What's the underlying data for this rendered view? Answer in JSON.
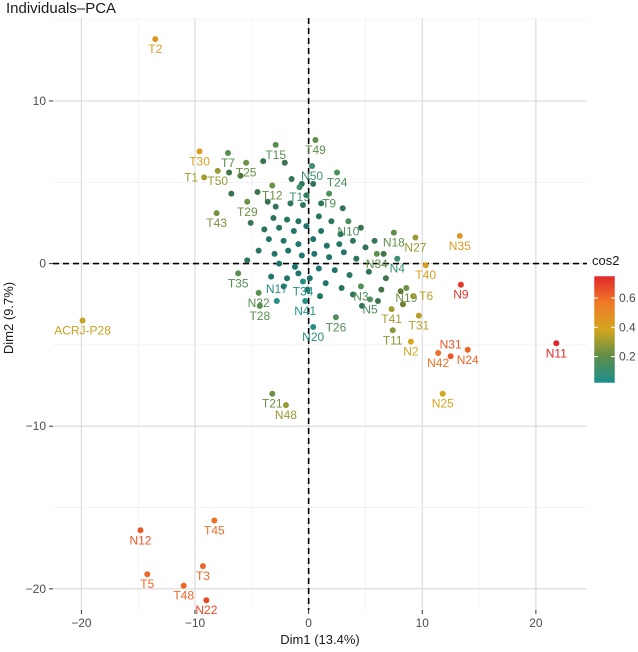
{
  "chart_data": {
    "type": "scatter",
    "title": "Individuals–PCA",
    "xlabel": "Dim1 (13.4%)",
    "ylabel": "Dim2 (9.7%)",
    "xlim": [
      -22.5,
      24.5
    ],
    "ylim": [
      -21.3,
      15.1
    ],
    "xticks": [
      -20,
      -10,
      0,
      10,
      20
    ],
    "yticks": [
      -20,
      -10,
      0,
      10
    ],
    "grid": true,
    "reference_lines": {
      "x": 0,
      "y": 0,
      "style": "dashed"
    },
    "color_by": "cos2",
    "legend": {
      "title": "cos2",
      "ticks": [
        0.2,
        0.4,
        0.6
      ],
      "range": [
        0.02,
        0.75
      ],
      "placement": "right"
    },
    "labeled_points": [
      {
        "label": "T2",
        "x": -13.5,
        "y": 13.8,
        "cos2": 0.45
      },
      {
        "label": "T30",
        "x": -9.6,
        "y": 6.9,
        "cos2": 0.42
      },
      {
        "label": "T7",
        "x": -7.1,
        "y": 6.8,
        "cos2": 0.18
      },
      {
        "label": "T15",
        "x": -2.9,
        "y": 7.3,
        "cos2": 0.18
      },
      {
        "label": "T49",
        "x": 0.6,
        "y": 7.6,
        "cos2": 0.2
      },
      {
        "label": "T50",
        "x": -8.0,
        "y": 5.7,
        "cos2": 0.3
      },
      {
        "label": "T25",
        "x": -5.5,
        "y": 6.2,
        "cos2": 0.22
      },
      {
        "label": "N50",
        "x": 0.3,
        "y": 6.0,
        "cos2": 0.12
      },
      {
        "label": "T24",
        "x": 2.5,
        "y": 5.6,
        "cos2": 0.15
      },
      {
        "label": "T12",
        "x": -3.2,
        "y": 4.8,
        "cos2": 0.22
      },
      {
        "label": "T19",
        "x": -0.8,
        "y": 4.7,
        "cos2": 0.12
      },
      {
        "label": "T1",
        "x": -9.2,
        "y": 5.3,
        "cos2": 0.32
      },
      {
        "label": "T9",
        "x": 1.8,
        "y": 4.3,
        "cos2": 0.16
      },
      {
        "label": "T29",
        "x": -5.4,
        "y": 3.8,
        "cos2": 0.22
      },
      {
        "label": "T43",
        "x": -8.1,
        "y": 3.1,
        "cos2": 0.24
      },
      {
        "label": "N10",
        "x": 3.5,
        "y": 2.6,
        "cos2": 0.15
      },
      {
        "label": "N18",
        "x": 7.5,
        "y": 1.9,
        "cos2": 0.2
      },
      {
        "label": "N27",
        "x": 9.4,
        "y": 1.6,
        "cos2": 0.3
      },
      {
        "label": "N35",
        "x": 13.3,
        "y": 1.7,
        "cos2": 0.45
      },
      {
        "label": "N34",
        "x": 6.0,
        "y": 0.6,
        "cos2": 0.2
      },
      {
        "label": "N4",
        "x": 7.8,
        "y": 0.3,
        "cos2": 0.1
      },
      {
        "label": "T40",
        "x": 10.3,
        "y": -0.1,
        "cos2": 0.42
      },
      {
        "label": "T35",
        "x": -6.2,
        "y": -0.6,
        "cos2": 0.18
      },
      {
        "label": "T34",
        "x": -0.5,
        "y": -1.1,
        "cos2": 0.05
      },
      {
        "label": "N3",
        "x": 4.6,
        "y": -1.4,
        "cos2": 0.16
      },
      {
        "label": "N19",
        "x": 8.6,
        "y": -1.5,
        "cos2": 0.22
      },
      {
        "label": "N9",
        "x": 13.4,
        "y": -1.3,
        "cos2": 0.72
      },
      {
        "label": "N32",
        "x": -4.4,
        "y": -1.8,
        "cos2": 0.18
      },
      {
        "label": "N5",
        "x": 5.4,
        "y": -2.2,
        "cos2": 0.15
      },
      {
        "label": "N41",
        "x": -0.3,
        "y": -2.3,
        "cos2": 0.05
      },
      {
        "label": "T6",
        "x": 9.2,
        "y": -2.0,
        "cos2": 0.35
      },
      {
        "label": "T41",
        "x": 7.3,
        "y": -2.8,
        "cos2": 0.32
      },
      {
        "label": "N17",
        "x": -2.8,
        "y": -2.3,
        "cos2": 0.05
      },
      {
        "label": "T28",
        "x": -4.3,
        "y": -2.6,
        "cos2": 0.18
      },
      {
        "label": "T26",
        "x": 2.4,
        "y": -3.3,
        "cos2": 0.16
      },
      {
        "label": "T31",
        "x": 9.7,
        "y": -3.2,
        "cos2": 0.35
      },
      {
        "label": "ACRJ-P28",
        "x": -19.9,
        "y": -3.5,
        "cos2": 0.38
      },
      {
        "label": "N20",
        "x": 0.4,
        "y": -3.9,
        "cos2": 0.05
      },
      {
        "label": "T11",
        "x": 7.4,
        "y": -4.1,
        "cos2": 0.28
      },
      {
        "label": "N42",
        "x": 11.4,
        "y": -5.5,
        "cos2": 0.6
      },
      {
        "label": "N24",
        "x": 14.0,
        "y": -5.3,
        "cos2": 0.62
      },
      {
        "label": "N2",
        "x": 9.0,
        "y": -4.8,
        "cos2": 0.4
      },
      {
        "label": "N31",
        "x": 12.5,
        "y": -5.7,
        "cos2": 0.65
      },
      {
        "label": "N11",
        "x": 21.8,
        "y": -4.9,
        "cos2": 0.75
      },
      {
        "label": "N25",
        "x": 11.8,
        "y": -8.0,
        "cos2": 0.4
      },
      {
        "label": "T21",
        "x": -3.2,
        "y": -8.0,
        "cos2": 0.22
      },
      {
        "label": "N48",
        "x": -2.0,
        "y": -8.7,
        "cos2": 0.3
      },
      {
        "label": "T45",
        "x": -8.3,
        "y": -15.8,
        "cos2": 0.6
      },
      {
        "label": "N12",
        "x": -14.8,
        "y": -16.4,
        "cos2": 0.65
      },
      {
        "label": "T3",
        "x": -9.3,
        "y": -18.6,
        "cos2": 0.62
      },
      {
        "label": "T5",
        "x": -14.2,
        "y": -19.1,
        "cos2": 0.62
      },
      {
        "label": "T48",
        "x": -11.0,
        "y": -19.8,
        "cos2": 0.62
      },
      {
        "label": "N22",
        "x": -9.0,
        "y": -20.7,
        "cos2": 0.68
      }
    ],
    "other_points": [
      [
        -7.0,
        5.6,
        0.16
      ],
      [
        -6.0,
        5.4,
        0.2
      ],
      [
        -4.0,
        6.3,
        0.15
      ],
      [
        -2.1,
        6.2,
        0.14
      ],
      [
        -1.5,
        5.2,
        0.13
      ],
      [
        -0.6,
        4.9,
        0.1
      ],
      [
        -0.2,
        4.2,
        0.1
      ],
      [
        0.4,
        4.9,
        0.11
      ],
      [
        -4.5,
        4.4,
        0.14
      ],
      [
        -3.6,
        3.8,
        0.13
      ],
      [
        -2.9,
        3.5,
        0.12
      ],
      [
        -1.6,
        3.7,
        0.11
      ],
      [
        -0.5,
        3.6,
        0.1
      ],
      [
        1.1,
        3.7,
        0.1
      ],
      [
        -6.8,
        4.3,
        0.14
      ],
      [
        -5.1,
        2.5,
        0.13
      ],
      [
        -3.1,
        2.8,
        0.1
      ],
      [
        -1.9,
        2.7,
        0.08
      ],
      [
        -0.9,
        2.6,
        0.07
      ],
      [
        0.9,
        2.9,
        0.09
      ],
      [
        2.0,
        2.6,
        0.1
      ],
      [
        3.0,
        3.4,
        0.12
      ],
      [
        -3.9,
        2.1,
        0.09
      ],
      [
        -2.6,
        2.2,
        0.08
      ],
      [
        -1.3,
        2.0,
        0.06
      ],
      [
        -0.2,
        2.3,
        0.05
      ],
      [
        1.1,
        2.0,
        0.06
      ],
      [
        2.8,
        1.8,
        0.09
      ],
      [
        4.6,
        2.2,
        0.13
      ],
      [
        5.8,
        1.4,
        0.14
      ],
      [
        -3.5,
        1.5,
        0.07
      ],
      [
        -2.2,
        1.4,
        0.06
      ],
      [
        -0.9,
        1.2,
        0.04
      ],
      [
        0.4,
        1.5,
        0.05
      ],
      [
        1.6,
        1.1,
        0.05
      ],
      [
        2.7,
        1.2,
        0.07
      ],
      [
        3.9,
        1.4,
        0.1
      ],
      [
        5.0,
        1.0,
        0.12
      ],
      [
        -4.4,
        0.8,
        0.07
      ],
      [
        -3.0,
        0.6,
        0.06
      ],
      [
        -1.8,
        0.8,
        0.05
      ],
      [
        -0.6,
        0.5,
        0.04
      ],
      [
        0.5,
        0.6,
        0.04
      ],
      [
        1.8,
        0.4,
        0.05
      ],
      [
        3.1,
        0.7,
        0.07
      ],
      [
        4.2,
        0.3,
        0.1
      ],
      [
        6.6,
        0.6,
        0.16
      ],
      [
        -5.4,
        0.2,
        0.09
      ],
      [
        -2.6,
        0.0,
        0.05
      ],
      [
        -1.2,
        -0.2,
        0.04
      ],
      [
        0.9,
        -0.3,
        0.04
      ],
      [
        2.3,
        -0.4,
        0.05
      ],
      [
        3.6,
        -0.7,
        0.08
      ],
      [
        5.3,
        -0.5,
        0.12
      ],
      [
        6.8,
        -0.9,
        0.16
      ],
      [
        -3.3,
        -0.8,
        0.06
      ],
      [
        -1.9,
        -0.9,
        0.05
      ],
      [
        1.5,
        -1.2,
        0.05
      ],
      [
        2.9,
        -1.5,
        0.08
      ],
      [
        3.9,
        -1.9,
        0.1
      ],
      [
        6.4,
        -1.6,
        0.17
      ],
      [
        8.1,
        -1.7,
        0.24
      ],
      [
        -0.1,
        -1.6,
        0.04
      ],
      [
        1.0,
        -2.0,
        0.06
      ],
      [
        4.7,
        -2.6,
        0.12
      ],
      [
        6.1,
        -2.3,
        0.15
      ],
      [
        8.3,
        -2.5,
        0.28
      ],
      [
        -0.9,
        -0.6,
        0.04
      ],
      [
        0.1,
        -0.9,
        0.04
      ],
      [
        -2.2,
        -1.4,
        0.06
      ]
    ]
  }
}
